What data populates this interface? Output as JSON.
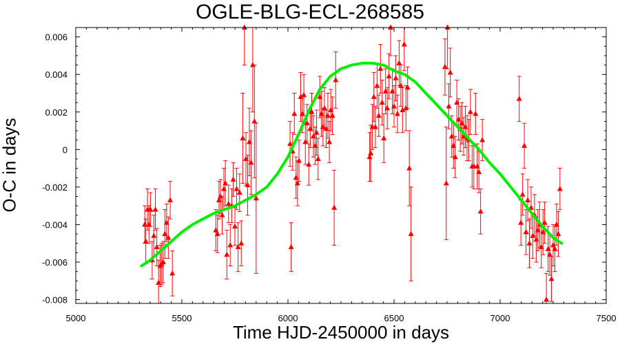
{
  "chart_data": {
    "type": "scatter",
    "title": "OGLE-BLG-ECL-268585",
    "xlabel": "Time HJD-2450000 in days",
    "ylabel": "O-C in days",
    "xlim": [
      5000,
      7500
    ],
    "ylim": [
      -0.0082,
      0.0065
    ],
    "xticks": [
      "5000",
      "5500",
      "6000",
      "6500",
      "7000",
      "7500"
    ],
    "yticks": [
      "-0.008",
      "-0.006",
      "-0.004",
      "-0.002",
      "0",
      "0.002",
      "0.004",
      "0.006"
    ],
    "grid": false,
    "colors": {
      "points": "#ff0000",
      "fit": "#00ee00"
    },
    "series": [
      {
        "type": "scatter-errorbars",
        "points": [
          {
            "x": 5325,
            "y": -0.004,
            "err": 0.001
          },
          {
            "x": 5330,
            "y": -0.0049,
            "err": 0.0012
          },
          {
            "x": 5338,
            "y": -0.0032,
            "err": 0.0011
          },
          {
            "x": 5345,
            "y": -0.004,
            "err": 0.001
          },
          {
            "x": 5352,
            "y": -0.0032,
            "err": 0.0009
          },
          {
            "x": 5360,
            "y": -0.0059,
            "err": 0.001
          },
          {
            "x": 5368,
            "y": -0.0046,
            "err": 0.0011
          },
          {
            "x": 5375,
            "y": -0.0032,
            "err": 0.0011
          },
          {
            "x": 5382,
            "y": -0.0052,
            "err": 0.001
          },
          {
            "x": 5390,
            "y": -0.0071,
            "err": 0.0012
          },
          {
            "x": 5398,
            "y": -0.0062,
            "err": 0.0011
          },
          {
            "x": 5405,
            "y": -0.0061,
            "err": 0.0011
          },
          {
            "x": 5412,
            "y": -0.006,
            "err": 0.0011
          },
          {
            "x": 5420,
            "y": -0.0045,
            "err": 0.0013
          },
          {
            "x": 5428,
            "y": -0.0039,
            "err": 0.001
          },
          {
            "x": 5436,
            "y": -0.0047,
            "err": 0.0011
          },
          {
            "x": 5445,
            "y": -0.0027,
            "err": 0.001
          },
          {
            "x": 5455,
            "y": -0.0066,
            "err": 0.0012
          },
          {
            "x": 5660,
            "y": -0.0043,
            "err": 0.0011
          },
          {
            "x": 5668,
            "y": -0.0045,
            "err": 0.001
          },
          {
            "x": 5675,
            "y": -0.0027,
            "err": 0.001
          },
          {
            "x": 5682,
            "y": -0.0025,
            "err": 0.0009
          },
          {
            "x": 5690,
            "y": -0.0035,
            "err": 0.001
          },
          {
            "x": 5698,
            "y": -0.0021,
            "err": 0.0011
          },
          {
            "x": 5705,
            "y": -0.0018,
            "err": 0.0012
          },
          {
            "x": 5712,
            "y": -0.0056,
            "err": 0.0013
          },
          {
            "x": 5720,
            "y": -0.0029,
            "err": 0.001
          },
          {
            "x": 5728,
            "y": -0.0051,
            "err": 0.0011
          },
          {
            "x": 5735,
            "y": -0.003,
            "err": 0.0009
          },
          {
            "x": 5742,
            "y": -0.0016,
            "err": 0.0009
          },
          {
            "x": 5750,
            "y": -0.0041,
            "err": 0.001
          },
          {
            "x": 5758,
            "y": -0.0021,
            "err": 0.0011
          },
          {
            "x": 5765,
            "y": -0.0052,
            "err": 0.0013
          },
          {
            "x": 5772,
            "y": -0.0023,
            "err": 0.001
          },
          {
            "x": 5780,
            "y": -0.005,
            "err": 0.0012
          },
          {
            "x": 5787,
            "y": 0.0006,
            "err": 0.0024
          },
          {
            "x": 5795,
            "y": 0.0065,
            "err": 0.002
          },
          {
            "x": 5802,
            "y": -0.0005,
            "err": 0.0014
          },
          {
            "x": 5810,
            "y": -0.0019,
            "err": 0.0016
          },
          {
            "x": 5818,
            "y": 0.0004,
            "err": 0.0018
          },
          {
            "x": 5826,
            "y": -0.0007,
            "err": 0.0017
          },
          {
            "x": 5834,
            "y": 0.0045,
            "err": 0.0025
          },
          {
            "x": 5842,
            "y": 0.0015,
            "err": 0.003
          },
          {
            "x": 5850,
            "y": -0.0026,
            "err": 0.004
          },
          {
            "x": 6010,
            "y": 0.0003,
            "err": 0.0012
          },
          {
            "x": 6015,
            "y": -0.0052,
            "err": 0.0013
          },
          {
            "x": 6022,
            "y": -0.0001,
            "err": 0.001
          },
          {
            "x": 6030,
            "y": 0.0019,
            "err": 0.0011
          },
          {
            "x": 6038,
            "y": -0.0015,
            "err": 0.0011
          },
          {
            "x": 6045,
            "y": -0.0018,
            "err": 0.0012
          },
          {
            "x": 6052,
            "y": -0.0006,
            "err": 0.0011
          },
          {
            "x": 6060,
            "y": 0.0028,
            "err": 0.0013
          },
          {
            "x": 6068,
            "y": 0.0019,
            "err": 0.001
          },
          {
            "x": 6075,
            "y": 0.0029,
            "err": 0.0011
          },
          {
            "x": 6082,
            "y": 0.0004,
            "err": 0.0012
          },
          {
            "x": 6090,
            "y": 0.0014,
            "err": 0.001
          },
          {
            "x": 6098,
            "y": -0.0008,
            "err": 0.0011
          },
          {
            "x": 6105,
            "y": 0.0011,
            "err": 0.001
          },
          {
            "x": 6112,
            "y": 0.002,
            "err": 0.001
          },
          {
            "x": 6120,
            "y": 0.0007,
            "err": 0.0011
          },
          {
            "x": 6128,
            "y": 0.0002,
            "err": 0.001
          },
          {
            "x": 6135,
            "y": 0.0009,
            "err": 0.0012
          },
          {
            "x": 6142,
            "y": -0.0005,
            "err": 0.0011
          },
          {
            "x": 6150,
            "y": 0.0028,
            "err": 0.0011
          },
          {
            "x": 6158,
            "y": 0.0019,
            "err": 0.0012
          },
          {
            "x": 6165,
            "y": 0.0012,
            "err": 0.001
          },
          {
            "x": 6172,
            "y": 0.0022,
            "err": 0.0011
          },
          {
            "x": 6180,
            "y": 0.0011,
            "err": 0.001
          },
          {
            "x": 6188,
            "y": 0.0018,
            "err": 0.0012
          },
          {
            "x": 6195,
            "y": 0.0004,
            "err": 0.0011
          },
          {
            "x": 6202,
            "y": 0.0021,
            "err": 0.0011
          },
          {
            "x": 6210,
            "y": 0.0018,
            "err": 0.001
          },
          {
            "x": 6218,
            "y": -0.0031,
            "err": 0.002
          },
          {
            "x": 6225,
            "y": 0.0037,
            "err": 0.0015
          },
          {
            "x": 6385,
            "y": -0.0004,
            "err": 0.0013
          },
          {
            "x": 6390,
            "y": -0.0002,
            "err": 0.0015
          },
          {
            "x": 6398,
            "y": 0.0012,
            "err": 0.0012
          },
          {
            "x": 6405,
            "y": 0.0028,
            "err": 0.0013
          },
          {
            "x": 6412,
            "y": 0.0012,
            "err": 0.0011
          },
          {
            "x": 6420,
            "y": 0.0034,
            "err": 0.0012
          },
          {
            "x": 6428,
            "y": 0.0018,
            "err": 0.0011
          },
          {
            "x": 6436,
            "y": 0.0043,
            "err": 0.0013
          },
          {
            "x": 6444,
            "y": 0.0025,
            "err": 0.0012
          },
          {
            "x": 6452,
            "y": 0.0006,
            "err": 0.0013
          },
          {
            "x": 6460,
            "y": 0.0031,
            "err": 0.0012
          },
          {
            "x": 6468,
            "y": 0.0022,
            "err": 0.0011
          },
          {
            "x": 6476,
            "y": 0.0039,
            "err": 0.0012
          },
          {
            "x": 6484,
            "y": 0.0065,
            "err": 0.0015
          },
          {
            "x": 6492,
            "y": 0.0031,
            "err": 0.0012
          },
          {
            "x": 6500,
            "y": 0.0023,
            "err": 0.0011
          },
          {
            "x": 6508,
            "y": 0.0038,
            "err": 0.0012
          },
          {
            "x": 6516,
            "y": 0.0019,
            "err": 0.001
          },
          {
            "x": 6524,
            "y": 0.0046,
            "err": 0.0012
          },
          {
            "x": 6532,
            "y": 0.0034,
            "err": 0.0011
          },
          {
            "x": 6540,
            "y": 0.0021,
            "err": 0.0012
          },
          {
            "x": 6548,
            "y": 0.0056,
            "err": 0.0014
          },
          {
            "x": 6556,
            "y": 0.0022,
            "err": 0.0012
          },
          {
            "x": 6564,
            "y": 0.0033,
            "err": 0.0011
          },
          {
            "x": 6572,
            "y": -0.001,
            "err": 0.002
          },
          {
            "x": 6580,
            "y": -0.0045,
            "err": 0.0025
          },
          {
            "x": 6740,
            "y": 0.0044,
            "err": 0.0015
          },
          {
            "x": 6746,
            "y": -0.0018,
            "err": 0.003
          },
          {
            "x": 6752,
            "y": 0.0065,
            "err": 0.0022
          },
          {
            "x": 6758,
            "y": 0.0023,
            "err": 0.0012
          },
          {
            "x": 6765,
            "y": 0.0041,
            "err": 0.0013
          },
          {
            "x": 6772,
            "y": 0.0007,
            "err": 0.0011
          },
          {
            "x": 6780,
            "y": 0.0002,
            "err": 0.0012
          },
          {
            "x": 6788,
            "y": -0.0004,
            "err": 0.0011
          },
          {
            "x": 6796,
            "y": 0.0025,
            "err": 0.0012
          },
          {
            "x": 6804,
            "y": 0.0016,
            "err": 0.0011
          },
          {
            "x": 6812,
            "y": 0.0011,
            "err": 0.0012
          },
          {
            "x": 6820,
            "y": 0.0014,
            "err": 0.0011
          },
          {
            "x": 6828,
            "y": 0.0007,
            "err": 0.001
          },
          {
            "x": 6836,
            "y": 0.0012,
            "err": 0.0011
          },
          {
            "x": 6844,
            "y": 0.0006,
            "err": 0.0012
          },
          {
            "x": 6852,
            "y": 0.0005,
            "err": 0.0011
          },
          {
            "x": 6860,
            "y": 0.002,
            "err": 0.0012
          },
          {
            "x": 6868,
            "y": -0.0009,
            "err": 0.0011
          },
          {
            "x": 6876,
            "y": -0.0009,
            "err": 0.0012
          },
          {
            "x": 6884,
            "y": 0.0019,
            "err": 0.0011
          },
          {
            "x": 6892,
            "y": -0.0009,
            "err": 0.0012
          },
          {
            "x": 6900,
            "y": -0.0012,
            "err": 0.0011
          },
          {
            "x": 6908,
            "y": -0.0033,
            "err": 0.0012
          },
          {
            "x": 6916,
            "y": 0.0005,
            "err": 0.0011
          },
          {
            "x": 7090,
            "y": 0.0027,
            "err": 0.0012
          },
          {
            "x": 7098,
            "y": -0.0039,
            "err": 0.0012
          },
          {
            "x": 7106,
            "y": -0.0024,
            "err": 0.0011
          },
          {
            "x": 7114,
            "y": 0.0002,
            "err": 0.0012
          },
          {
            "x": 7122,
            "y": -0.0044,
            "err": 0.0012
          },
          {
            "x": 7130,
            "y": -0.0027,
            "err": 0.0011
          },
          {
            "x": 7138,
            "y": -0.005,
            "err": 0.0013
          },
          {
            "x": 7146,
            "y": -0.0031,
            "err": 0.0011
          },
          {
            "x": 7154,
            "y": -0.0046,
            "err": 0.0012
          },
          {
            "x": 7162,
            "y": -0.0035,
            "err": 0.0011
          },
          {
            "x": 7170,
            "y": -0.0048,
            "err": 0.0012
          },
          {
            "x": 7178,
            "y": -0.0043,
            "err": 0.0011
          },
          {
            "x": 7186,
            "y": -0.004,
            "err": 0.0012
          },
          {
            "x": 7194,
            "y": -0.0052,
            "err": 0.0011
          },
          {
            "x": 7202,
            "y": -0.0044,
            "err": 0.0012
          },
          {
            "x": 7210,
            "y": -0.0039,
            "err": 0.0011
          },
          {
            "x": 7218,
            "y": -0.008,
            "err": 0.0014
          },
          {
            "x": 7226,
            "y": -0.0053,
            "err": 0.0012
          },
          {
            "x": 7234,
            "y": -0.0056,
            "err": 0.0011
          },
          {
            "x": 7242,
            "y": -0.0069,
            "err": 0.0012
          },
          {
            "x": 7250,
            "y": -0.0051,
            "err": 0.0011
          },
          {
            "x": 7258,
            "y": -0.0053,
            "err": 0.0012
          },
          {
            "x": 7266,
            "y": -0.004,
            "err": 0.0011
          },
          {
            "x": 7274,
            "y": -0.0045,
            "err": 0.0012
          },
          {
            "x": 7282,
            "y": -0.0021,
            "err": 0.0011
          }
        ]
      },
      {
        "type": "fit-line",
        "x": [
          5310,
          5350,
          5400,
          5450,
          5500,
          5550,
          5600,
          5650,
          5700,
          5750,
          5800,
          5850,
          5900,
          5950,
          6000,
          6050,
          6100,
          6150,
          6200,
          6250,
          6300,
          6350,
          6400,
          6450,
          6500,
          6550,
          6600,
          6650,
          6700,
          6750,
          6800,
          6850,
          6900,
          6950,
          7000,
          7050,
          7100,
          7150,
          7200,
          7250,
          7290
        ],
        "y": [
          -0.0062,
          -0.0059,
          -0.0054,
          -0.0049,
          -0.0044,
          -0.004,
          -0.0037,
          -0.0034,
          -0.0032,
          -0.003,
          -0.0027,
          -0.0024,
          -0.002,
          -0.0013,
          -0.0004,
          0.0008,
          0.0021,
          0.0032,
          0.0039,
          0.0043,
          0.0045,
          0.0046,
          0.0046,
          0.0045,
          0.0042,
          0.004,
          0.0036,
          0.003,
          0.0024,
          0.0018,
          0.0012,
          0.0006,
          -0.0,
          -0.0007,
          -0.0013,
          -0.002,
          -0.0027,
          -0.0034,
          -0.0041,
          -0.0047,
          -0.005
        ]
      }
    ]
  }
}
